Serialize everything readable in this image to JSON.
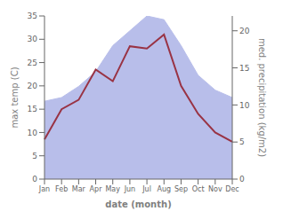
{
  "chart_data": {
    "type": "line",
    "categories": [
      "Jan",
      "Feb",
      "Mar",
      "Apr",
      "May",
      "Jun",
      "Jul",
      "Aug",
      "Sep",
      "Oct",
      "Nov",
      "Dec"
    ],
    "series": [
      {
        "type": "area",
        "color": "#b8beea",
        "axis": "y2",
        "values": [
          10.5,
          11.0,
          12.5,
          14.5,
          18.0,
          20.0,
          22.0,
          21.5,
          18.0,
          14.0,
          12.0,
          11.0
        ]
      },
      {
        "type": "line",
        "color": "#993344",
        "values": [
          8.5,
          15.0,
          17.0,
          23.5,
          21.0,
          28.5,
          28.0,
          31.0,
          20.0,
          14.0,
          10.0,
          8.0
        ]
      }
    ],
    "xlabel": "date (month)",
    "ylabel": "max temp (C)",
    "y2label": "med. precipitation (kg/m2)",
    "ylim": [
      0,
      35
    ],
    "yticks": [
      0,
      5,
      10,
      15,
      20,
      25,
      30,
      35
    ],
    "y2lim": [
      0,
      22
    ],
    "y2ticks": [
      0,
      5,
      10,
      15,
      20
    ],
    "grid": false
  }
}
